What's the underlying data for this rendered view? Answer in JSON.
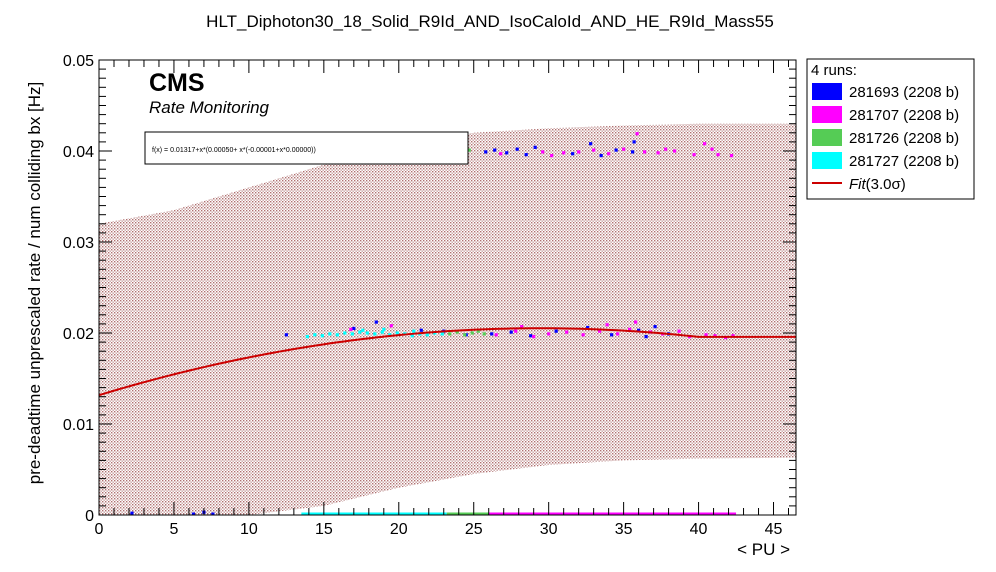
{
  "chart_data": {
    "type": "scatter",
    "title": "HLT_Diphoton30_18_Solid_R9Id_AND_IsoCaloId_AND_HE_R9Id_Mass55",
    "xlabel": "< PU >",
    "ylabel": "pre-deadtime unprescaled rate / num colliding bx [Hz]",
    "xlim": [
      0,
      46.5
    ],
    "ylim": [
      0,
      0.05
    ],
    "x_ticks": [
      0,
      5,
      10,
      15,
      20,
      25,
      30,
      35,
      40,
      45
    ],
    "x_tick_labels": [
      "0",
      "5",
      "10",
      "15",
      "20",
      "25",
      "30",
      "35",
      "40",
      "45"
    ],
    "y_ticks": [
      0,
      0.01,
      0.02,
      0.03,
      0.04,
      0.05
    ],
    "y_tick_labels": [
      "0",
      "0.01",
      "0.02",
      "0.03",
      "0.04",
      "0.05"
    ],
    "annotations": {
      "experiment": "CMS",
      "subtitle": "Rate Monitoring",
      "fit_formula": "f(x) = 0.01317+x*(0.00050+ x*(-0.00001+x*0.00000))"
    },
    "legend": {
      "position": "outside-top-right",
      "header": "4 runs:",
      "entries": [
        {
          "label": "281693 (2208 b)",
          "color": "#0000ff",
          "kind": "box"
        },
        {
          "label": "281707 (2208 b)",
          "color": "#ff00ff",
          "kind": "box"
        },
        {
          "label": "281726 (2208 b)",
          "color": "#55cc55",
          "kind": "box"
        },
        {
          "label": "281727 (2208 b)",
          "color": "#00ffff",
          "kind": "box"
        },
        {
          "label_prefix": "Fit",
          "label_suffix": "(3.0σ)",
          "color": "#cc0000",
          "kind": "line"
        }
      ]
    },
    "fit": {
      "coefficients": [
        0.01317,
        0.0005,
        -1e-05,
        0.0
      ],
      "x_range": [
        0,
        46.5
      ],
      "color": "#cc0000",
      "band_color": "#c8a0a0",
      "band_upper": [
        [
          0,
          0.032
        ],
        [
          5,
          0.0335
        ],
        [
          10,
          0.036
        ],
        [
          15,
          0.0385
        ],
        [
          20,
          0.0405
        ],
        [
          25,
          0.042
        ],
        [
          30,
          0.0425
        ],
        [
          35,
          0.0428
        ],
        [
          40,
          0.043
        ],
        [
          46.5,
          0.043
        ]
      ],
      "band_lower": [
        [
          0,
          0.0
        ],
        [
          10,
          0.0
        ],
        [
          15,
          0.001
        ],
        [
          20,
          0.003
        ],
        [
          25,
          0.0045
        ],
        [
          30,
          0.0055
        ],
        [
          35,
          0.006
        ],
        [
          40,
          0.0062
        ],
        [
          46.5,
          0.0063
        ]
      ]
    },
    "series": [
      {
        "name": "281693 (2208 b)",
        "color": "#0000ff",
        "points": [
          [
            2.2,
            0.0002
          ],
          [
            6.3,
            0.0001
          ],
          [
            7.0,
            0.0003
          ],
          [
            7.6,
            0.0001
          ],
          [
            12.5,
            0.0198
          ],
          [
            17.0,
            0.0205
          ],
          [
            18.5,
            0.0212
          ],
          [
            21.5,
            0.0203
          ],
          [
            23.0,
            0.0202
          ],
          [
            24.5,
            0.0198
          ],
          [
            25.8,
            0.0399
          ],
          [
            26.4,
            0.0401
          ],
          [
            27.2,
            0.0398
          ],
          [
            27.9,
            0.0402
          ],
          [
            28.5,
            0.0396
          ],
          [
            29.1,
            0.0404
          ],
          [
            31.6,
            0.0397
          ],
          [
            32.8,
            0.0408
          ],
          [
            33.5,
            0.0395
          ],
          [
            34.5,
            0.0401
          ],
          [
            35.6,
            0.0399
          ],
          [
            35.7,
            0.041
          ],
          [
            26.2,
            0.0199
          ],
          [
            27.5,
            0.0201
          ],
          [
            28.8,
            0.0197
          ],
          [
            30.5,
            0.0202
          ],
          [
            32.6,
            0.0206
          ],
          [
            34.2,
            0.0198
          ],
          [
            36.0,
            0.0203
          ],
          [
            37.1,
            0.0207
          ],
          [
            36.5,
            0.0196
          ],
          [
            38.0,
            0.0199
          ]
        ]
      },
      {
        "name": "281707 (2208 b)",
        "color": "#ff00ff",
        "points": [
          [
            26.8,
            0.0397
          ],
          [
            29.6,
            0.0399
          ],
          [
            30.2,
            0.0395
          ],
          [
            31.0,
            0.0398
          ],
          [
            32.0,
            0.0399
          ],
          [
            33.0,
            0.0401
          ],
          [
            34.0,
            0.0397
          ],
          [
            35.0,
            0.0402
          ],
          [
            35.9,
            0.0419
          ],
          [
            36.4,
            0.0399
          ],
          [
            37.3,
            0.0398
          ],
          [
            37.8,
            0.0402
          ],
          [
            38.4,
            0.04
          ],
          [
            39.7,
            0.0396
          ],
          [
            40.4,
            0.0408
          ],
          [
            40.9,
            0.0402
          ],
          [
            41.3,
            0.0396
          ],
          [
            42.2,
            0.0395
          ],
          [
            26.5,
            0.0198
          ],
          [
            27.8,
            0.0202
          ],
          [
            29.0,
            0.0196
          ],
          [
            30.0,
            0.0199
          ],
          [
            31.2,
            0.0201
          ],
          [
            32.3,
            0.0198
          ],
          [
            33.4,
            0.0202
          ],
          [
            34.6,
            0.0199
          ],
          [
            35.4,
            0.0204
          ],
          [
            35.8,
            0.0212
          ],
          [
            36.8,
            0.0201
          ],
          [
            37.6,
            0.0199
          ],
          [
            38.7,
            0.0202
          ],
          [
            39.4,
            0.0196
          ],
          [
            40.5,
            0.0198
          ],
          [
            41.1,
            0.0197
          ],
          [
            41.8,
            0.0195
          ],
          [
            42.3,
            0.0197
          ],
          [
            28.2,
            0.0207
          ],
          [
            33.9,
            0.0209
          ],
          [
            19.5,
            0.0208
          ],
          [
            16.8,
            0.0204
          ]
        ]
      },
      {
        "name": "281726 (2208 b)",
        "color": "#55cc55",
        "points": [
          [
            24.2,
            0.0398
          ],
          [
            24.7,
            0.0401
          ],
          [
            23.4,
            0.0199
          ],
          [
            23.9,
            0.0201
          ],
          [
            24.4,
            0.0198
          ],
          [
            24.9,
            0.02
          ],
          [
            25.3,
            0.0202
          ],
          [
            25.7,
            0.0199
          ]
        ]
      },
      {
        "name": "281727 (2208 b)",
        "color": "#00ffff",
        "points": [
          [
            13.9,
            0.0196
          ],
          [
            14.4,
            0.0198
          ],
          [
            14.9,
            0.0197
          ],
          [
            15.4,
            0.0199
          ],
          [
            15.9,
            0.0198
          ],
          [
            16.4,
            0.02
          ],
          [
            16.9,
            0.0199
          ],
          [
            17.4,
            0.0201
          ],
          [
            17.9,
            0.02
          ],
          [
            18.4,
            0.0199
          ],
          [
            18.9,
            0.0201
          ],
          [
            19.4,
            0.0198
          ],
          [
            19.9,
            0.02
          ],
          [
            20.4,
            0.0199
          ],
          [
            20.9,
            0.0197
          ],
          [
            21.4,
            0.0199
          ],
          [
            21.9,
            0.0198
          ],
          [
            22.4,
            0.02
          ],
          [
            22.9,
            0.0199
          ],
          [
            17.6,
            0.0203
          ],
          [
            19.0,
            0.0204
          ],
          [
            21.0,
            0.0202
          ]
        ]
      }
    ],
    "x_strip": [
      {
        "x_range": [
          13.5,
          23.2
        ],
        "color": "#00ffff"
      },
      {
        "x_range": [
          23.2,
          26.0
        ],
        "color": "#55cc55"
      },
      {
        "x_range": [
          26.0,
          42.5
        ],
        "color": "#ff00ff"
      }
    ]
  }
}
